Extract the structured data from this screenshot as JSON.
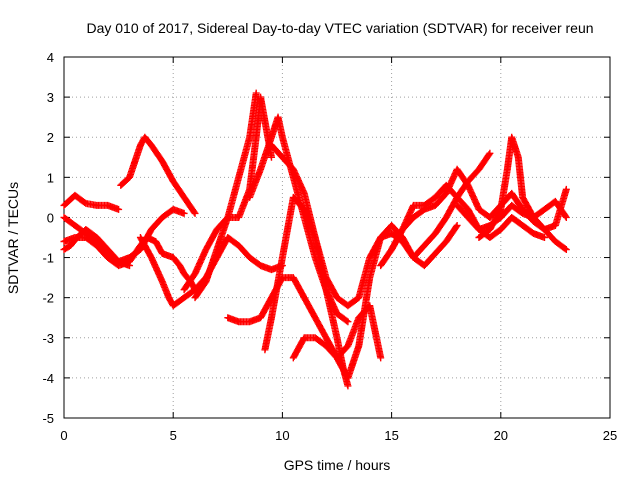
{
  "chart_data": {
    "type": "scatter",
    "title": "Day 010 of 2017, Sidereal Day-to-day VTEC variation (SDTVAR) for receiver reun",
    "xlabel": "GPS time / hours",
    "ylabel": "SDTVAR / TECUs",
    "xlim": [
      0,
      25
    ],
    "ylim": [
      -5,
      4
    ],
    "xticks": [
      "0",
      "5",
      "10",
      "15",
      "20",
      "25"
    ],
    "yticks": [
      "4",
      "3",
      "2",
      "1",
      "0",
      "-1",
      "-2",
      "-3",
      "-4",
      "-5"
    ],
    "grid": true,
    "marker": "plus",
    "color": "#ff0000",
    "series": [
      {
        "x": [
          0.0,
          0.5,
          1.0,
          1.5,
          2.0,
          2.5
        ],
        "y": [
          0.3,
          0.55,
          0.35,
          0.3,
          0.3,
          0.2
        ]
      },
      {
        "x": [
          0.0,
          0.5,
          1.0,
          1.5,
          2.0,
          2.5,
          3.0,
          3.5,
          3.8,
          4.2,
          4.5,
          5.0,
          5.3,
          5.5,
          5.8,
          6.0
        ],
        "y": [
          -0.6,
          -0.5,
          -0.5,
          -0.7,
          -1.0,
          -1.2,
          -1.1,
          -0.7,
          -0.5,
          -0.6,
          -0.9,
          -1.0,
          -1.2,
          -1.4,
          -1.6,
          -1.8
        ]
      },
      {
        "x": [
          0.0,
          0.5,
          1.0,
          1.5,
          2.0,
          2.5,
          3.0,
          3.5,
          4.0,
          4.5,
          5.0,
          5.5
        ],
        "y": [
          0.0,
          -0.2,
          -0.4,
          -0.6,
          -0.9,
          -1.1,
          -1.0,
          -0.8,
          -0.3,
          0.0,
          0.2,
          0.1
        ]
      },
      {
        "x": [
          0.0,
          0.3,
          0.6,
          1.0,
          1.5,
          2.0,
          2.5,
          3.0
        ],
        "y": [
          -0.8,
          -0.7,
          -0.5,
          -0.3,
          -0.5,
          -0.8,
          -1.1,
          -1.2
        ]
      },
      {
        "x": [
          2.6,
          3.0,
          3.5,
          3.7,
          4.0,
          4.5,
          5.0,
          5.5,
          6.0
        ],
        "y": [
          0.8,
          1.0,
          1.8,
          2.0,
          1.8,
          1.4,
          0.9,
          0.5,
          0.1
        ]
      },
      {
        "x": [
          3.5,
          4.0,
          4.5,
          4.8,
          5.0,
          5.5,
          6.0,
          6.5,
          7.0,
          7.5,
          8.0,
          8.5,
          9.0,
          9.5,
          10.0
        ],
        "y": [
          -0.5,
          -1.0,
          -1.6,
          -2.0,
          -2.2,
          -2.0,
          -1.8,
          -1.5,
          -1.0,
          -0.5,
          -0.7,
          -1.0,
          -1.2,
          -1.3,
          -1.2
        ]
      },
      {
        "x": [
          5.5,
          6.0,
          6.5,
          7.0,
          7.5,
          8.0,
          8.5,
          8.8,
          9.0,
          9.5
        ],
        "y": [
          -1.8,
          -1.4,
          -0.8,
          -0.3,
          0.0,
          0.0,
          0.7,
          2.0,
          3.0,
          1.5
        ]
      },
      {
        "x": [
          6.0,
          6.5,
          7.0,
          7.5,
          8.0,
          8.5,
          8.8
        ],
        "y": [
          -2.0,
          -1.6,
          -0.8,
          0.0,
          1.0,
          2.0,
          3.1
        ]
      },
      {
        "x": [
          7.5,
          8.0,
          8.5,
          9.0,
          9.5,
          10.0,
          10.5,
          11.0,
          11.5,
          12.0,
          12.5,
          13.0
        ],
        "y": [
          -2.5,
          -2.6,
          -2.6,
          -2.5,
          -2.0,
          -1.5,
          -1.5,
          -2.0,
          -2.5,
          -3.0,
          -3.5,
          -4.0
        ]
      },
      {
        "x": [
          8.5,
          9.0,
          9.5,
          9.8,
          10.0,
          10.5,
          11.0,
          11.5,
          12.0,
          12.5,
          13.0
        ],
        "y": [
          0.5,
          1.2,
          2.0,
          2.5,
          2.0,
          1.0,
          0.0,
          -1.0,
          -1.8,
          -2.4,
          -2.6
        ]
      },
      {
        "x": [
          9.5,
          10.0,
          10.5,
          11.0,
          11.5,
          12.0,
          12.5,
          13.0,
          13.5,
          14.0,
          14.5,
          15.0,
          15.5,
          16.0
        ],
        "y": [
          1.8,
          1.5,
          1.2,
          0.6,
          -0.5,
          -1.5,
          -2.0,
          -2.2,
          -2.0,
          -1.0,
          -0.5,
          -0.4,
          -0.6,
          -1.0
        ]
      },
      {
        "x": [
          9.2,
          9.5,
          10.0,
          10.5,
          11.0,
          11.5,
          12.0,
          12.5,
          12.8,
          13.0
        ],
        "y": [
          -3.3,
          -2.5,
          -1.0,
          0.5,
          0.2,
          -0.5,
          -1.8,
          -3.0,
          -3.8,
          -4.2
        ]
      },
      {
        "x": [
          10.5,
          11.0,
          11.5,
          12.0,
          12.5,
          13.0,
          13.5,
          14.0,
          14.5
        ],
        "y": [
          -3.5,
          -3.0,
          -3.0,
          -3.2,
          -3.5,
          -3.2,
          -2.5,
          -2.2,
          -3.5
        ]
      },
      {
        "x": [
          12.5,
          13.0,
          13.5,
          14.0,
          14.5,
          15.0,
          15.5,
          16.0,
          16.5,
          17.0,
          17.5,
          18.0
        ],
        "y": [
          -3.5,
          -4.0,
          -3.2,
          -1.5,
          -0.5,
          -0.2,
          -0.5,
          -1.0,
          -1.2,
          -0.9,
          -0.6,
          -0.2
        ]
      },
      {
        "x": [
          14.5,
          15.0,
          15.5,
          16.0,
          16.5,
          17.0,
          17.5,
          18.0,
          18.5,
          19.0,
          19.5
        ],
        "y": [
          -1.2,
          -0.8,
          -0.3,
          0.0,
          0.2,
          0.3,
          0.6,
          1.2,
          0.8,
          0.2,
          0.0
        ]
      },
      {
        "x": [
          15.0,
          15.5,
          16.0,
          16.5,
          17.0,
          17.5,
          18.0,
          18.5,
          19.0,
          19.5
        ],
        "y": [
          -0.8,
          -0.3,
          0.3,
          0.3,
          0.5,
          0.8,
          0.5,
          0.9,
          1.2,
          1.6
        ]
      },
      {
        "x": [
          16.0,
          16.5,
          17.0,
          17.5,
          18.0,
          18.5,
          19.0,
          19.5,
          20.0,
          20.5,
          21.0,
          21.5,
          22.0
        ],
        "y": [
          -1.0,
          -0.7,
          -0.4,
          0.0,
          0.5,
          0.2,
          -0.3,
          -0.5,
          -0.3,
          0.0,
          -0.2,
          -0.4,
          -0.5
        ]
      },
      {
        "x": [
          18.0,
          18.5,
          19.0,
          19.5,
          20.0,
          20.5,
          21.0,
          21.5,
          22.0,
          22.5,
          23.0
        ],
        "y": [
          0.3,
          0.0,
          -0.3,
          -0.2,
          0.0,
          0.3,
          0.1,
          0.0,
          0.2,
          0.4,
          0.0
        ]
      },
      {
        "x": [
          19.0,
          19.5,
          20.0,
          20.3,
          20.5,
          20.8,
          21.0,
          21.5,
          22.0,
          22.5,
          23.0
        ],
        "y": [
          -0.5,
          -0.3,
          0.2,
          1.2,
          2.0,
          1.5,
          0.5,
          0.0,
          -0.3,
          -0.6,
          -0.8
        ]
      },
      {
        "x": [
          19.5,
          20.0,
          20.5,
          21.0,
          21.5,
          22.0,
          22.5,
          23.0
        ],
        "y": [
          0.0,
          0.3,
          0.6,
          0.2,
          -0.1,
          -0.3,
          -0.2,
          0.7
        ]
      }
    ]
  }
}
